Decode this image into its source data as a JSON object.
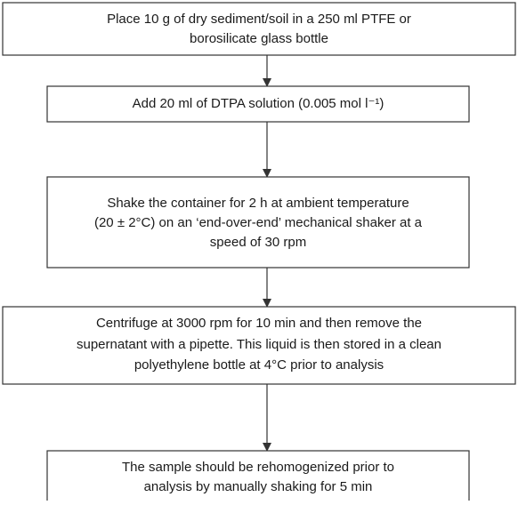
{
  "nodes": [
    {
      "lines": [
        "Place 10 g of dry sediment/soil in a 250 ml PTFE or",
        "borosilicate glass bottle"
      ]
    },
    {
      "lines": [
        "Add 20 ml of DTPA solution (0.005 mol l⁻¹)"
      ]
    },
    {
      "lines": [
        "Shake the container for 2 h at ambient temperature",
        "(20 ± 2°C) on an ‘end-over-end’ mechanical shaker at a",
        "speed of 30 rpm"
      ]
    },
    {
      "lines": [
        "Centrifuge at 3000 rpm for 10 min and then remove the",
        "supernatant with a pipette. This liquid is then stored in a clean",
        "polyethylene bottle at 4°C prior to analysis"
      ]
    },
    {
      "lines": [
        "The sample should be rehomogenized prior to",
        "analysis by manually shaking for 5 min"
      ]
    }
  ]
}
